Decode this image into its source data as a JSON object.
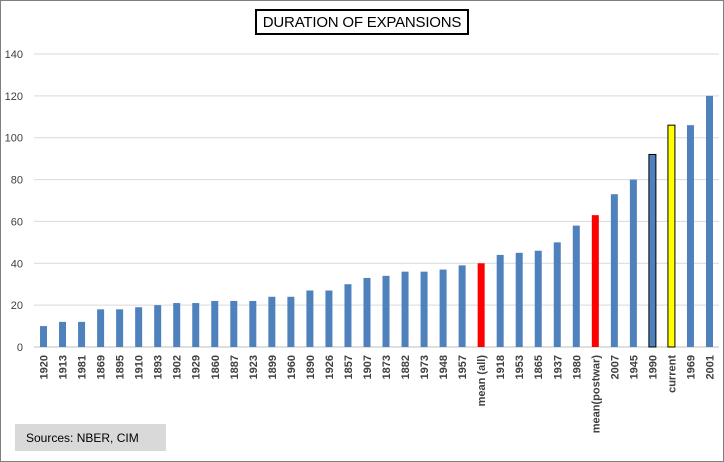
{
  "chart_data": {
    "type": "bar",
    "title": "DURATION OF EXPANSIONS",
    "xlabel": "",
    "ylabel": "",
    "ylim": [
      0,
      140
    ],
    "yticks": [
      0,
      20,
      40,
      60,
      80,
      100,
      120,
      140
    ],
    "grid": true,
    "legend": "none",
    "categories": [
      "1920",
      "1913",
      "1981",
      "1869",
      "1895",
      "1910",
      "1893",
      "1902",
      "1929",
      "1860",
      "1887",
      "1923",
      "1899",
      "1960",
      "1890",
      "1926",
      "1857",
      "1907",
      "1873",
      "1882",
      "1973",
      "1948",
      "1957",
      "mean (all)",
      "1918",
      "1953",
      "1865",
      "1937",
      "1980",
      "mean(postwar)",
      "2007",
      "1945",
      "1990",
      "current",
      "1969",
      "2001"
    ],
    "values": [
      10,
      12,
      12,
      18,
      18,
      19,
      20,
      21,
      21,
      22,
      22,
      22,
      24,
      24,
      27,
      27,
      30,
      33,
      34,
      36,
      36,
      37,
      39,
      40,
      44,
      45,
      46,
      50,
      58,
      63,
      73,
      80,
      92,
      106,
      106,
      120
    ],
    "highlights": {
      "mean (all)": "red",
      "mean(postwar)": "red",
      "1990": "outlined-blue",
      "current": "yellow"
    }
  },
  "colors": {
    "bar": "#4f81bd",
    "mean": "#ff0000",
    "current": "#ffff00",
    "outline": "#000000",
    "grid": "#d9d9d9",
    "source_bg": "#d9d9d9"
  },
  "source": "Sources:  NBER, CIM"
}
